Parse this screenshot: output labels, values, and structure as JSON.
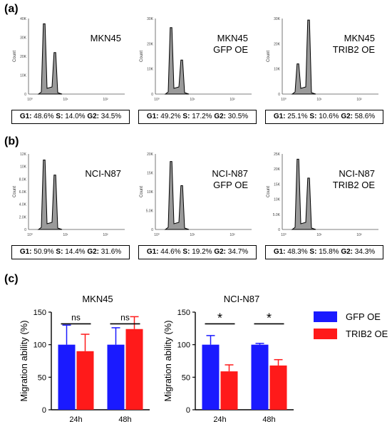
{
  "panels": {
    "a": "(a)",
    "b": "(b)",
    "c": "(c)"
  },
  "colors": {
    "gfp": "#1a1aff",
    "trib2": "#ff1a1a",
    "histogram_fill": "#9a9a9a"
  },
  "flow_plots": [
    {
      "label_lines": [
        "MKN45"
      ],
      "g1": "48.6%",
      "s": "14.0%",
      "g2": "34.5%",
      "yticks": [
        "40K",
        "30K",
        "20K",
        "10K",
        "0"
      ],
      "peak1": 0.93,
      "peak2": 0.55
    },
    {
      "label_lines": [
        "MKN45",
        "GFP OE"
      ],
      "g1": "49.2%",
      "s": "17.2%",
      "g2": "30.5%",
      "yticks": [
        "30K",
        "20K",
        "10K",
        "0"
      ],
      "peak1": 0.88,
      "peak2": 0.45
    },
    {
      "label_lines": [
        "MKN45",
        "TRIB2 OE"
      ],
      "g1": "25.1%",
      "s": "10.6%",
      "g2": "58.6%",
      "yticks": [
        "30K",
        "20K",
        "10K",
        "0"
      ],
      "peak1": 0.4,
      "peak2": 0.98
    },
    {
      "label_lines": [
        "NCI-N87"
      ],
      "g1": "50.9%",
      "s": "14.4%",
      "g2": "31.6%",
      "yticks": [
        "12K",
        "10K",
        "8.0K",
        "6.0K",
        "4.0K",
        "2.0K",
        "0"
      ],
      "peak1": 0.92,
      "peak2": 0.72
    },
    {
      "label_lines": [
        "NCI-N87",
        "GFP OE"
      ],
      "g1": "44.6%",
      "s": "19.2%",
      "g2": "34.7%",
      "yticks": [
        "20K",
        "15K",
        "10K",
        "5.0K",
        "0"
      ],
      "peak1": 0.9,
      "peak2": 0.58
    },
    {
      "label_lines": [
        "NCI-N87",
        "TRIB2 OE"
      ],
      "g1": "48.3%",
      "s": "15.8%",
      "g2": "34.3%",
      "yticks": [
        "25K",
        "20K",
        "15K",
        "10K",
        "5.0K",
        "0"
      ],
      "peak1": 0.93,
      "peak2": 0.68
    }
  ],
  "flow_axis": {
    "ylabel": "Count",
    "xticks": [
      "10⁰",
      "10¹",
      "10²"
    ],
    "g1_label": "G1:",
    "s_label": "S:",
    "g2_label": "G2:"
  },
  "legend": [
    "GFP OE",
    "TRIB2 OE"
  ],
  "chart_data": [
    {
      "type": "bar",
      "title": "MKN45",
      "ylabel": "Migration ability (%)",
      "categories": [
        "24h",
        "48h"
      ],
      "ylim": [
        0,
        150
      ],
      "yticks": [
        0,
        50,
        100,
        150
      ],
      "series": [
        {
          "name": "GFP OE",
          "values": [
            100,
            100
          ],
          "errors": [
            30,
            26
          ]
        },
        {
          "name": "TRIB2 OE",
          "values": [
            90,
            124
          ],
          "errors": [
            26,
            19
          ]
        }
      ],
      "significance": [
        "ns",
        "ns"
      ]
    },
    {
      "type": "bar",
      "title": "NCI-N87",
      "ylabel": "Migration ability (%)",
      "categories": [
        "24h",
        "48h"
      ],
      "ylim": [
        0,
        150
      ],
      "yticks": [
        0,
        50,
        100,
        150
      ],
      "series": [
        {
          "name": "GFP OE",
          "values": [
            100,
            100
          ],
          "errors": [
            14,
            2
          ]
        },
        {
          "name": "TRIB2 OE",
          "values": [
            59,
            68
          ],
          "errors": [
            10,
            9
          ]
        }
      ],
      "significance": [
        "*",
        "*"
      ]
    }
  ]
}
